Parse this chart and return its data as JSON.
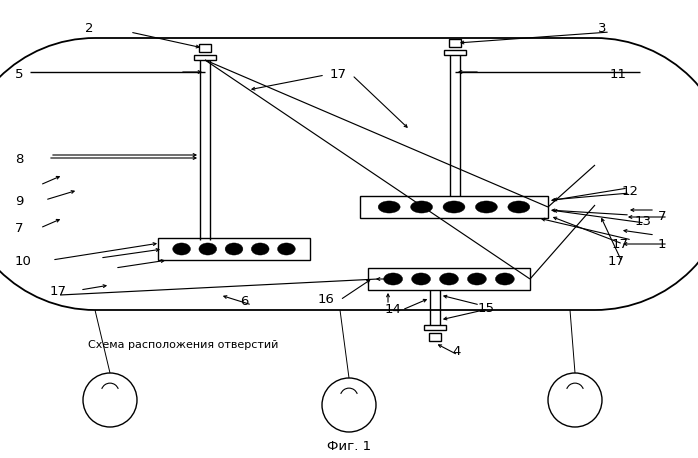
{
  "title": "Фиг. 1",
  "subtitle": "Схема расположения отверстий",
  "bg_color": "#ffffff",
  "line_color": "#000000",
  "fig_width": 6.98,
  "fig_height": 4.58,
  "dpi": 100
}
